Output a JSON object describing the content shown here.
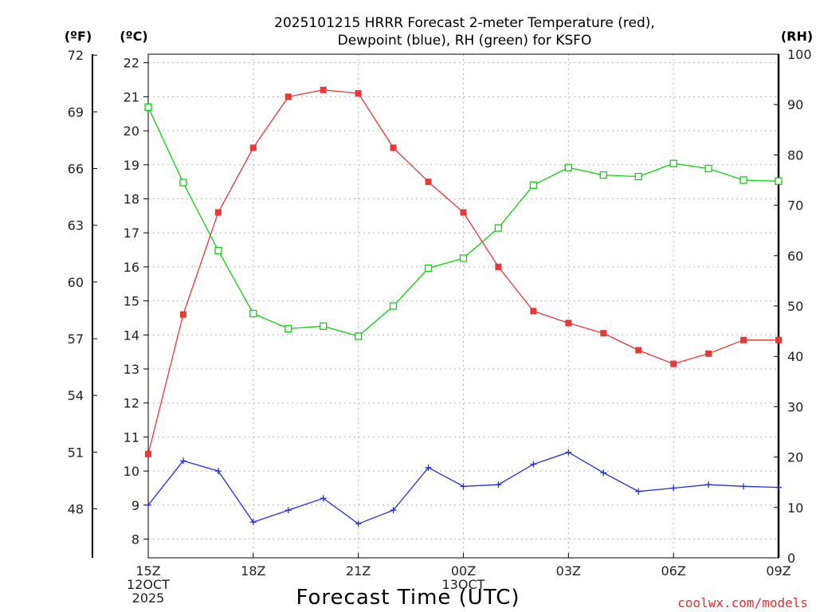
{
  "chart_data": {
    "type": "line",
    "title": "2025101215 HRRR Forecast 2-meter Temperature (red),",
    "subtitle": "Dewpoint (blue), RH (green) for KSFO",
    "xlabel": "Forecast Time (UTC)",
    "credit": "coolwx.com/models",
    "units": {
      "f": "(ºF)",
      "c": "(ºC)",
      "rh": "(RH)"
    },
    "x_hours": [
      0,
      1,
      2,
      3,
      4,
      5,
      6,
      7,
      8,
      9,
      10,
      11,
      12,
      13,
      14,
      15,
      16,
      17,
      18
    ],
    "xlim": [
      0,
      18
    ],
    "x_ticks": [
      {
        "hour": 0,
        "lines": [
          "15Z",
          "12OCT",
          "2025"
        ]
      },
      {
        "hour": 3,
        "lines": [
          "18Z"
        ]
      },
      {
        "hour": 6,
        "lines": [
          "21Z"
        ]
      },
      {
        "hour": 9,
        "lines": [
          "00Z",
          "13OCT"
        ]
      },
      {
        "hour": 12,
        "lines": [
          "03Z"
        ]
      },
      {
        "hour": 15,
        "lines": [
          "06Z"
        ]
      },
      {
        "hour": 18,
        "lines": [
          "09Z"
        ]
      }
    ],
    "y_celsius": {
      "ylim": [
        7.45,
        22.25
      ],
      "ticks": [
        8,
        9,
        10,
        11,
        12,
        13,
        14,
        15,
        16,
        17,
        18,
        19,
        20,
        21,
        22
      ]
    },
    "y_fahrenheit": {
      "ticks": [
        48,
        51,
        54,
        57,
        60,
        63,
        66,
        69,
        72
      ]
    },
    "y_rh": {
      "ylim": [
        0,
        100
      ],
      "ticks": [
        0,
        10,
        20,
        30,
        40,
        50,
        60,
        70,
        80,
        90,
        100
      ]
    },
    "series": [
      {
        "name": "Temperature",
        "color": "#e53935",
        "axis": "c",
        "marker": "filled-square",
        "values": [
          10.5,
          14.6,
          17.6,
          19.5,
          21.0,
          21.2,
          21.1,
          19.5,
          18.5,
          17.6,
          16.0,
          14.7,
          14.35,
          14.05,
          13.55,
          13.15,
          13.45,
          13.85,
          13.85
        ]
      },
      {
        "name": "Dewpoint",
        "color": "#2030e0",
        "axis": "c",
        "marker": "plus",
        "values": [
          9.0,
          10.3,
          10.0,
          8.5,
          8.85,
          9.2,
          8.45,
          8.85,
          10.1,
          9.55,
          9.6,
          10.2,
          10.55,
          9.95,
          9.4,
          9.5,
          9.6,
          9.55,
          9.52
        ]
      },
      {
        "name": "RH",
        "color": "#10d010",
        "axis": "rh",
        "marker": "open-square",
        "values": [
          89.5,
          74.5,
          61.0,
          48.5,
          45.5,
          46.0,
          44.0,
          50.0,
          57.5,
          59.5,
          65.5,
          74.0,
          77.5,
          76.0,
          75.7,
          78.3,
          77.3,
          75.0,
          74.8
        ]
      }
    ]
  }
}
